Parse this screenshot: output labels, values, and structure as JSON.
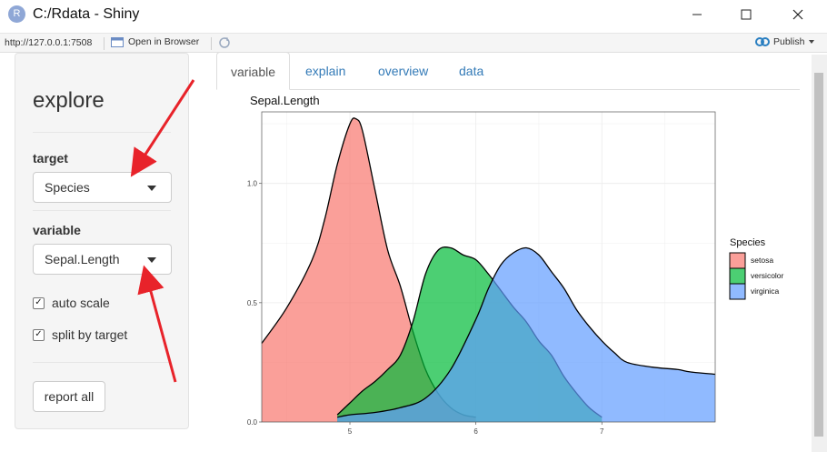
{
  "window": {
    "app_icon_letter": "R",
    "title": "C:/Rdata - Shiny"
  },
  "toolbar": {
    "url": "http://127.0.0.1:7508",
    "open_in_browser": "Open in Browser",
    "publish": "Publish"
  },
  "sidebar": {
    "title": "explore",
    "target_label": "target",
    "target_value": "Species",
    "variable_label": "variable",
    "variable_value": "Sepal.Length",
    "auto_scale_label": "auto scale",
    "auto_scale_checked": true,
    "split_label": "split by target",
    "split_checked": true,
    "report_button": "report all"
  },
  "tabs": [
    {
      "label": "variable",
      "active": true
    },
    {
      "label": "explain",
      "active": false
    },
    {
      "label": "overview",
      "active": false
    },
    {
      "label": "data",
      "active": false
    }
  ],
  "chart_data": {
    "type": "area",
    "title": "Sepal.Length",
    "xlabel": "",
    "ylabel": "",
    "xlim": [
      4.3,
      7.9
    ],
    "ylim": [
      0,
      1.3
    ],
    "x_ticks": [
      5,
      6,
      7
    ],
    "y_ticks": [
      0.0,
      0.5,
      1.0
    ],
    "y_tick_labels": [
      "0.0",
      "0.5",
      "1.0"
    ],
    "legend_title": "Species",
    "legend_position": "right",
    "grid": true,
    "series": [
      {
        "name": "setosa",
        "color": "#F8766D",
        "x": [
          4.3,
          4.5,
          4.7,
          4.8,
          4.9,
          5.0,
          5.05,
          5.1,
          5.2,
          5.3,
          5.4,
          5.5,
          5.6,
          5.7,
          5.8,
          5.9,
          6.0
        ],
        "y": [
          0.33,
          0.48,
          0.68,
          0.85,
          1.08,
          1.25,
          1.27,
          1.22,
          0.97,
          0.72,
          0.57,
          0.38,
          0.22,
          0.12,
          0.06,
          0.03,
          0.02
        ]
      },
      {
        "name": "versicolor",
        "color": "#00BA38",
        "x": [
          4.9,
          5.0,
          5.1,
          5.2,
          5.3,
          5.4,
          5.5,
          5.6,
          5.7,
          5.8,
          5.9,
          6.0,
          6.1,
          6.2,
          6.3,
          6.4,
          6.5,
          6.6,
          6.7,
          6.8,
          6.9,
          7.0
        ],
        "y": [
          0.03,
          0.08,
          0.13,
          0.17,
          0.22,
          0.28,
          0.42,
          0.62,
          0.72,
          0.73,
          0.7,
          0.68,
          0.62,
          0.55,
          0.48,
          0.42,
          0.34,
          0.28,
          0.19,
          0.12,
          0.06,
          0.02
        ]
      },
      {
        "name": "virginica",
        "color": "#619CFF",
        "x": [
          4.9,
          5.0,
          5.2,
          5.4,
          5.6,
          5.8,
          6.0,
          6.1,
          6.2,
          6.3,
          6.4,
          6.5,
          6.6,
          6.7,
          6.8,
          6.9,
          7.0,
          7.1,
          7.2,
          7.4,
          7.6,
          7.7,
          7.9
        ],
        "y": [
          0.02,
          0.03,
          0.04,
          0.06,
          0.1,
          0.22,
          0.43,
          0.56,
          0.66,
          0.71,
          0.73,
          0.7,
          0.63,
          0.56,
          0.47,
          0.4,
          0.34,
          0.29,
          0.25,
          0.23,
          0.22,
          0.21,
          0.2
        ]
      }
    ]
  }
}
